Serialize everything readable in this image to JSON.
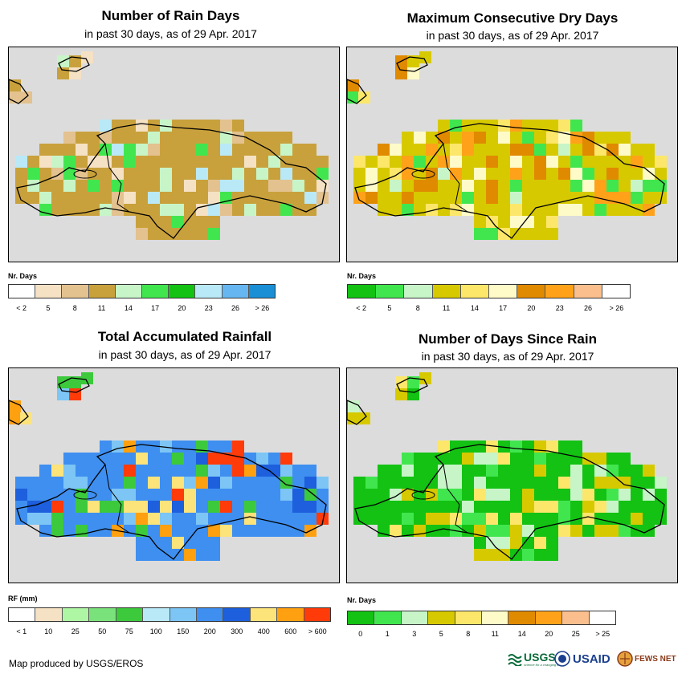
{
  "panels": [
    {
      "title": "Number of Rain Days",
      "subtitle": "in past 30 days, as of 29 Apr. 2017",
      "legend_title": "Nr. Days",
      "legend_labels": [
        "< 2",
        "5",
        "8",
        "11",
        "14",
        "17",
        "20",
        "23",
        "26",
        "> 26"
      ],
      "legend_colors": [
        "#ffffff",
        "#f5e1c4",
        "#e3c28f",
        "#c9a13c",
        "#c7f5c8",
        "#41e64f",
        "#13c213",
        "#b9e9f7",
        "#66b6f2",
        "#1a8fd6"
      ],
      "palette_cells": [
        "#f5e1c4",
        "#e3c28f",
        "#c9a13c",
        "#c7f5c8",
        "#41e64f",
        "#b9e9f7"
      ],
      "base_color": "#c9a13c"
    },
    {
      "title": "Maximum Consecutive Dry Days",
      "subtitle": "in past 30 days, as of 29 Apr. 2017",
      "legend_title": "Nr. Days",
      "legend_labels": [
        "< 2",
        "5",
        "8",
        "11",
        "14",
        "17",
        "20",
        "23",
        "26",
        "> 26"
      ],
      "legend_colors": [
        "#13c213",
        "#41e64f",
        "#c7f5c8",
        "#d7c900",
        "#fce76a",
        "#fffbc8",
        "#e08a00",
        "#ffa21a",
        "#fbbf8e",
        "#ffffff"
      ],
      "palette_cells": [
        "#d7c900",
        "#fce76a",
        "#fffbc8",
        "#e08a00",
        "#ffa21a",
        "#41e64f",
        "#c7f5c8"
      ],
      "base_color": "#d7c900"
    },
    {
      "title": "Total Accumulated Rainfall",
      "subtitle": "in past 30 days, as of 29 Apr. 2017",
      "legend_title": "RF (mm)",
      "legend_labels": [
        "< 1",
        "10",
        "25",
        "50",
        "75",
        "100",
        "150",
        "200",
        "300",
        "400",
        "600",
        "> 600"
      ],
      "legend_colors": [
        "#ffffff",
        "#f5e1c4",
        "#aef5a4",
        "#7ae27a",
        "#3cc93c",
        "#b9e9f7",
        "#7cc5f5",
        "#3e8ff0",
        "#1d5fdc",
        "#fce37a",
        "#ffa010",
        "#ff3b0a"
      ],
      "palette_cells": [
        "#1d5fdc",
        "#3e8ff0",
        "#7cc5f5",
        "#fce37a",
        "#ffa010",
        "#ff3b0a",
        "#3cc93c"
      ],
      "base_color": "#3e8ff0"
    },
    {
      "title": "Number of Days Since Rain",
      "subtitle": "in past 30 days, as of 29 Apr. 2017",
      "legend_title": "Nr. Days",
      "legend_labels": [
        "0",
        "1",
        "3",
        "5",
        "8",
        "11",
        "14",
        "20",
        "25",
        "> 25"
      ],
      "legend_colors": [
        "#13c213",
        "#41e64f",
        "#c7f5c8",
        "#d7c900",
        "#fce76a",
        "#fffbc8",
        "#e08a00",
        "#ffa21a",
        "#fbbf8e",
        "#ffffff"
      ],
      "palette_cells": [
        "#13c213",
        "#41e64f",
        "#d7c900",
        "#fce76a",
        "#c7f5c8"
      ],
      "base_color": "#13c213"
    }
  ],
  "credit": "Map produced by USGS/EROS",
  "logos": {
    "usgs": "USGS",
    "usgs_tagline": "science for a changing world",
    "usaid": "USAID",
    "fews": "FEWS NET"
  }
}
